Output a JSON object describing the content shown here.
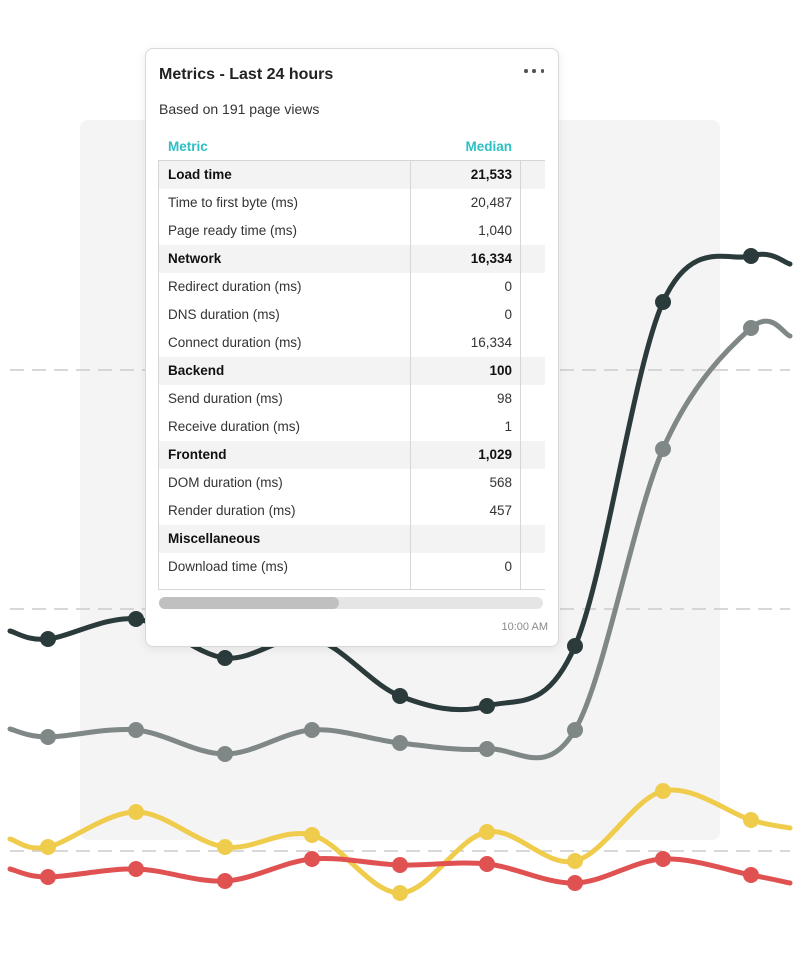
{
  "card": {
    "title": "Metrics - Last 24 hours",
    "subtitle": "Based on 191 page views",
    "menu_icon": "more-horizontal-icon",
    "columns": [
      "Metric",
      "Median"
    ],
    "rows": [
      {
        "name": "Load time",
        "value": "21,533",
        "group": true
      },
      {
        "name": "Time to first byte (ms)",
        "value": "20,487",
        "group": false
      },
      {
        "name": "Page ready time (ms)",
        "value": "1,040",
        "group": false
      },
      {
        "name": "Network",
        "value": "16,334",
        "group": true
      },
      {
        "name": "Redirect duration (ms)",
        "value": "0",
        "group": false
      },
      {
        "name": "DNS duration (ms)",
        "value": "0",
        "group": false
      },
      {
        "name": "Connect duration (ms)",
        "value": "16,334",
        "group": false
      },
      {
        "name": "Backend",
        "value": "100",
        "group": true
      },
      {
        "name": "Send duration (ms)",
        "value": "98",
        "group": false
      },
      {
        "name": "Receive duration (ms)",
        "value": "1",
        "group": false
      },
      {
        "name": "Frontend",
        "value": "1,029",
        "group": true
      },
      {
        "name": "DOM duration (ms)",
        "value": "568",
        "group": false
      },
      {
        "name": "Render duration (ms)",
        "value": "457",
        "group": false
      },
      {
        "name": "Miscellaneous",
        "value": "",
        "group": true
      },
      {
        "name": "Download time (ms)",
        "value": "0",
        "group": false
      }
    ],
    "scroll_position": 0.47,
    "timestamp": "10:00 AM",
    "accent_color": "#2cbfc4"
  },
  "background_chart": {
    "series": [
      {
        "color": "#2b3a3a",
        "values": [
          639,
          619,
          658,
          638,
          696,
          706,
          646,
          302,
          256
        ]
      },
      {
        "color": "#7f8787",
        "values": [
          737,
          730,
          754,
          730,
          743,
          749,
          730,
          449,
          328
        ]
      },
      {
        "color": "#f0cc4d",
        "values": [
          847,
          812,
          847,
          835,
          893,
          832,
          861,
          791,
          820
        ]
      },
      {
        "color": "#e05252",
        "values": [
          877,
          869,
          881,
          859,
          865,
          864,
          883,
          859,
          875
        ]
      }
    ],
    "gridline_color": "#cccccc"
  }
}
